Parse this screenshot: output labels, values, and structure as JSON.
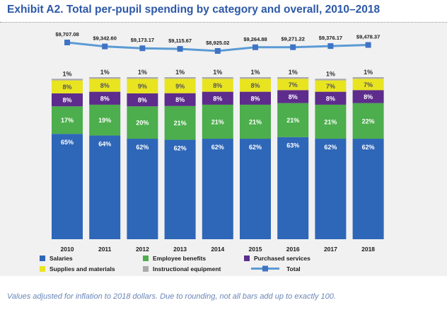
{
  "title": "Exhibit A2. Total per-pupil spending by category and overall, 2010–2018",
  "note": "Values adjusted for inflation to 2018 dollars. Due to rounding, not all bars add up to exactly 100.",
  "chart_data": {
    "type": "bar",
    "stacked": true,
    "categories": [
      "2010",
      "2011",
      "2012",
      "2013",
      "2014",
      "2015",
      "2016",
      "2017",
      "2018"
    ],
    "series": [
      {
        "name": "Salaries",
        "color": "#2e66b8",
        "values": [
          65,
          64,
          62,
          62,
          62,
          62,
          63,
          62,
          62
        ],
        "labels": [
          "65%",
          "64%",
          "62%",
          "62%",
          "62%",
          "62%",
          "63%",
          "62%",
          "62%"
        ]
      },
      {
        "name": "Employee benefits",
        "color": "#4cae4c",
        "values": [
          17,
          19,
          20,
          21,
          21,
          21,
          21,
          21,
          22
        ],
        "labels": [
          "17%",
          "19%",
          "20%",
          "21%",
          "21%",
          "21%",
          "21%",
          "21%",
          "22%"
        ]
      },
      {
        "name": "Purchased services",
        "color": "#5d2c8c",
        "values": [
          8,
          8,
          8,
          8,
          8,
          8,
          8,
          8,
          8
        ],
        "labels": [
          "8%",
          "8%",
          "8%",
          "8%",
          "8%",
          "8%",
          "8%",
          "8%",
          "8%"
        ]
      },
      {
        "name": "Supplies and materials",
        "color": "#e9e420",
        "values": [
          8,
          8,
          9,
          9,
          8,
          8,
          7,
          7,
          7
        ],
        "labels": [
          "8%",
          "8%",
          "9%",
          "9%",
          "8%",
          "8%",
          "7%",
          "7%",
          "7%"
        ]
      },
      {
        "name": "Instructional equipment",
        "color": "#a9aaac",
        "values": [
          1,
          1,
          1,
          1,
          1,
          1,
          1,
          1,
          1
        ],
        "labels": [
          "1%",
          "1%",
          "1%",
          "1%",
          "1%",
          "1%",
          "1%",
          "1%",
          "1%"
        ]
      }
    ],
    "total": {
      "name": "Total",
      "color": "#5b9bd5",
      "values": [
        9707.08,
        9342.6,
        9173.17,
        9115.67,
        8925.02,
        9264.88,
        9271.22,
        9376.17,
        9478.37
      ],
      "labels": [
        "$9,707.08",
        "$9,342.60",
        "$9,173.17",
        "$9,115.67",
        "$8,925.02",
        "$9,264.88",
        "$9,271.22",
        "$9,376.17",
        "$9,478.37"
      ]
    },
    "ylim": [
      0,
      100
    ],
    "grid": false,
    "legend_position": "bottom"
  }
}
